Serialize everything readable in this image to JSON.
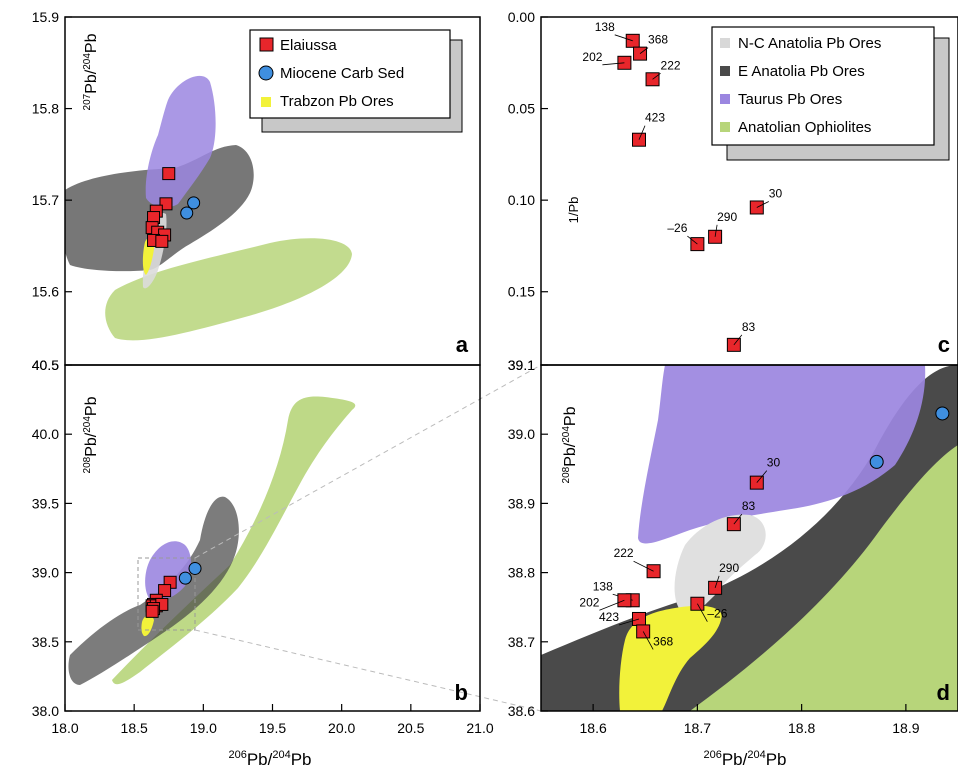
{
  "colors": {
    "elaiussa": "#e8262b",
    "miocene": "#3f8fe0",
    "trabzon": "#f2f23a",
    "nc_anatolia": "#d8d8d8",
    "e_anatolia": "#4a4a4a",
    "taurus": "#9b86e0",
    "ophiolites": "#b7d57a"
  },
  "legend_a": [
    {
      "label": "Elaiussa",
      "marker": "square"
    },
    {
      "label": "Miocene Carb Sed",
      "marker": "circle"
    },
    {
      "label": "Trabzon Pb Ores",
      "marker": "small-square"
    }
  ],
  "legend_c": [
    {
      "label": "N-C Anatolia Pb Ores"
    },
    {
      "label": "E Anatolia Pb Ores"
    },
    {
      "label": "Taurus Pb Ores"
    },
    {
      "label": "Anatolian Ophiolites"
    }
  ],
  "chart_data": [
    {
      "panel": "a",
      "type": "scatter",
      "ylabel": "207Pb/204Pb",
      "xlim": [
        18.0,
        21.0
      ],
      "ylim": [
        15.52,
        15.9
      ],
      "yticks": [
        "15.6",
        "15.7",
        "15.8",
        "15.9"
      ],
      "series": [
        {
          "name": "Elaiussa",
          "points": [
            [
              18.75,
              15.729
            ],
            [
              18.73,
              15.696
            ],
            [
              18.66,
              15.688
            ],
            [
              18.64,
              15.681
            ],
            [
              18.63,
              15.67
            ],
            [
              18.67,
              15.665
            ],
            [
              18.72,
              15.662
            ],
            [
              18.64,
              15.656
            ],
            [
              18.7,
              15.655
            ]
          ]
        },
        {
          "name": "Miocene Carb Sed",
          "points": [
            [
              18.93,
              15.697
            ],
            [
              18.88,
              15.686
            ]
          ]
        }
      ]
    },
    {
      "panel": "b",
      "type": "scatter",
      "ylabel": "208Pb/204Pb",
      "xlabel": "206Pb/204Pb",
      "xlim": [
        18.0,
        21.0
      ],
      "ylim": [
        38.0,
        40.5
      ],
      "xticks": [
        "18.0",
        "18.5",
        "19.0",
        "19.5",
        "20.0",
        "20.5",
        "21.0"
      ],
      "yticks": [
        "38.0",
        "38.5",
        "39.0",
        "39.5",
        "40.0",
        "40.5"
      ],
      "series": [
        {
          "name": "Elaiussa",
          "points": [
            [
              18.76,
              38.93
            ],
            [
              18.72,
              38.87
            ],
            [
              18.66,
              38.8
            ],
            [
              18.64,
              38.77
            ],
            [
              18.63,
              38.76
            ],
            [
              18.66,
              38.76
            ],
            [
              18.7,
              38.77
            ],
            [
              18.64,
              38.74
            ],
            [
              18.63,
              38.72
            ]
          ]
        },
        {
          "name": "Miocene Carb Sed",
          "points": [
            [
              18.94,
              39.03
            ],
            [
              18.87,
              38.96
            ]
          ]
        }
      ]
    },
    {
      "panel": "c",
      "type": "scatter",
      "ylabel": "1/Pb",
      "ylim": [
        0.0,
        0.19
      ],
      "yticks": [
        "0.00",
        "0.05",
        "0.10",
        "0.15"
      ],
      "series": [
        {
          "name": "Elaiussa",
          "points": [
            {
              "x": 18.638,
              "y": 0.013,
              "label": "138"
            },
            {
              "x": 18.645,
              "y": 0.02,
              "label": "368"
            },
            {
              "x": 18.63,
              "y": 0.025,
              "label": "202"
            },
            {
              "x": 18.657,
              "y": 0.034,
              "label": "222"
            },
            {
              "x": 18.644,
              "y": 0.067,
              "label": "423"
            },
            {
              "x": 18.757,
              "y": 0.104,
              "label": "30"
            },
            {
              "x": 18.717,
              "y": 0.12,
              "label": "290"
            },
            {
              "x": 18.7,
              "y": 0.124,
              "label": "26"
            },
            {
              "x": 18.735,
              "y": 0.179,
              "label": "83"
            }
          ]
        }
      ]
    },
    {
      "panel": "d",
      "type": "scatter",
      "ylabel": "208Pb/204Pb",
      "xlabel": "206Pb/204Pb",
      "xlim": [
        18.55,
        18.95
      ],
      "ylim": [
        38.6,
        39.1
      ],
      "xticks": [
        "18.6",
        "18.7",
        "18.8",
        "18.9"
      ],
      "yticks": [
        "38.6",
        "38.7",
        "38.8",
        "38.9",
        "39.0",
        "39.1"
      ],
      "series": [
        {
          "name": "Elaiussa",
          "points": [
            {
              "x": 18.757,
              "y": 38.93,
              "label": "30"
            },
            {
              "x": 18.735,
              "y": 38.87,
              "label": "83"
            },
            {
              "x": 18.658,
              "y": 38.802,
              "label": "222"
            },
            {
              "x": 18.717,
              "y": 38.778,
              "label": "290"
            },
            {
              "x": 18.638,
              "y": 38.76,
              "label": "138"
            },
            {
              "x": 18.63,
              "y": 38.76,
              "label": "202"
            },
            {
              "x": 18.7,
              "y": 38.755,
              "label": "26"
            },
            {
              "x": 18.644,
              "y": 38.733,
              "label": "423"
            },
            {
              "x": 18.648,
              "y": 38.715,
              "label": "368"
            }
          ]
        },
        {
          "name": "Miocene Carb Sed",
          "points": [
            {
              "x": 18.872,
              "y": 38.96
            },
            {
              "x": 18.935,
              "y": 39.03
            }
          ]
        }
      ]
    }
  ],
  "panel_letters": [
    "a",
    "b",
    "c",
    "d"
  ]
}
